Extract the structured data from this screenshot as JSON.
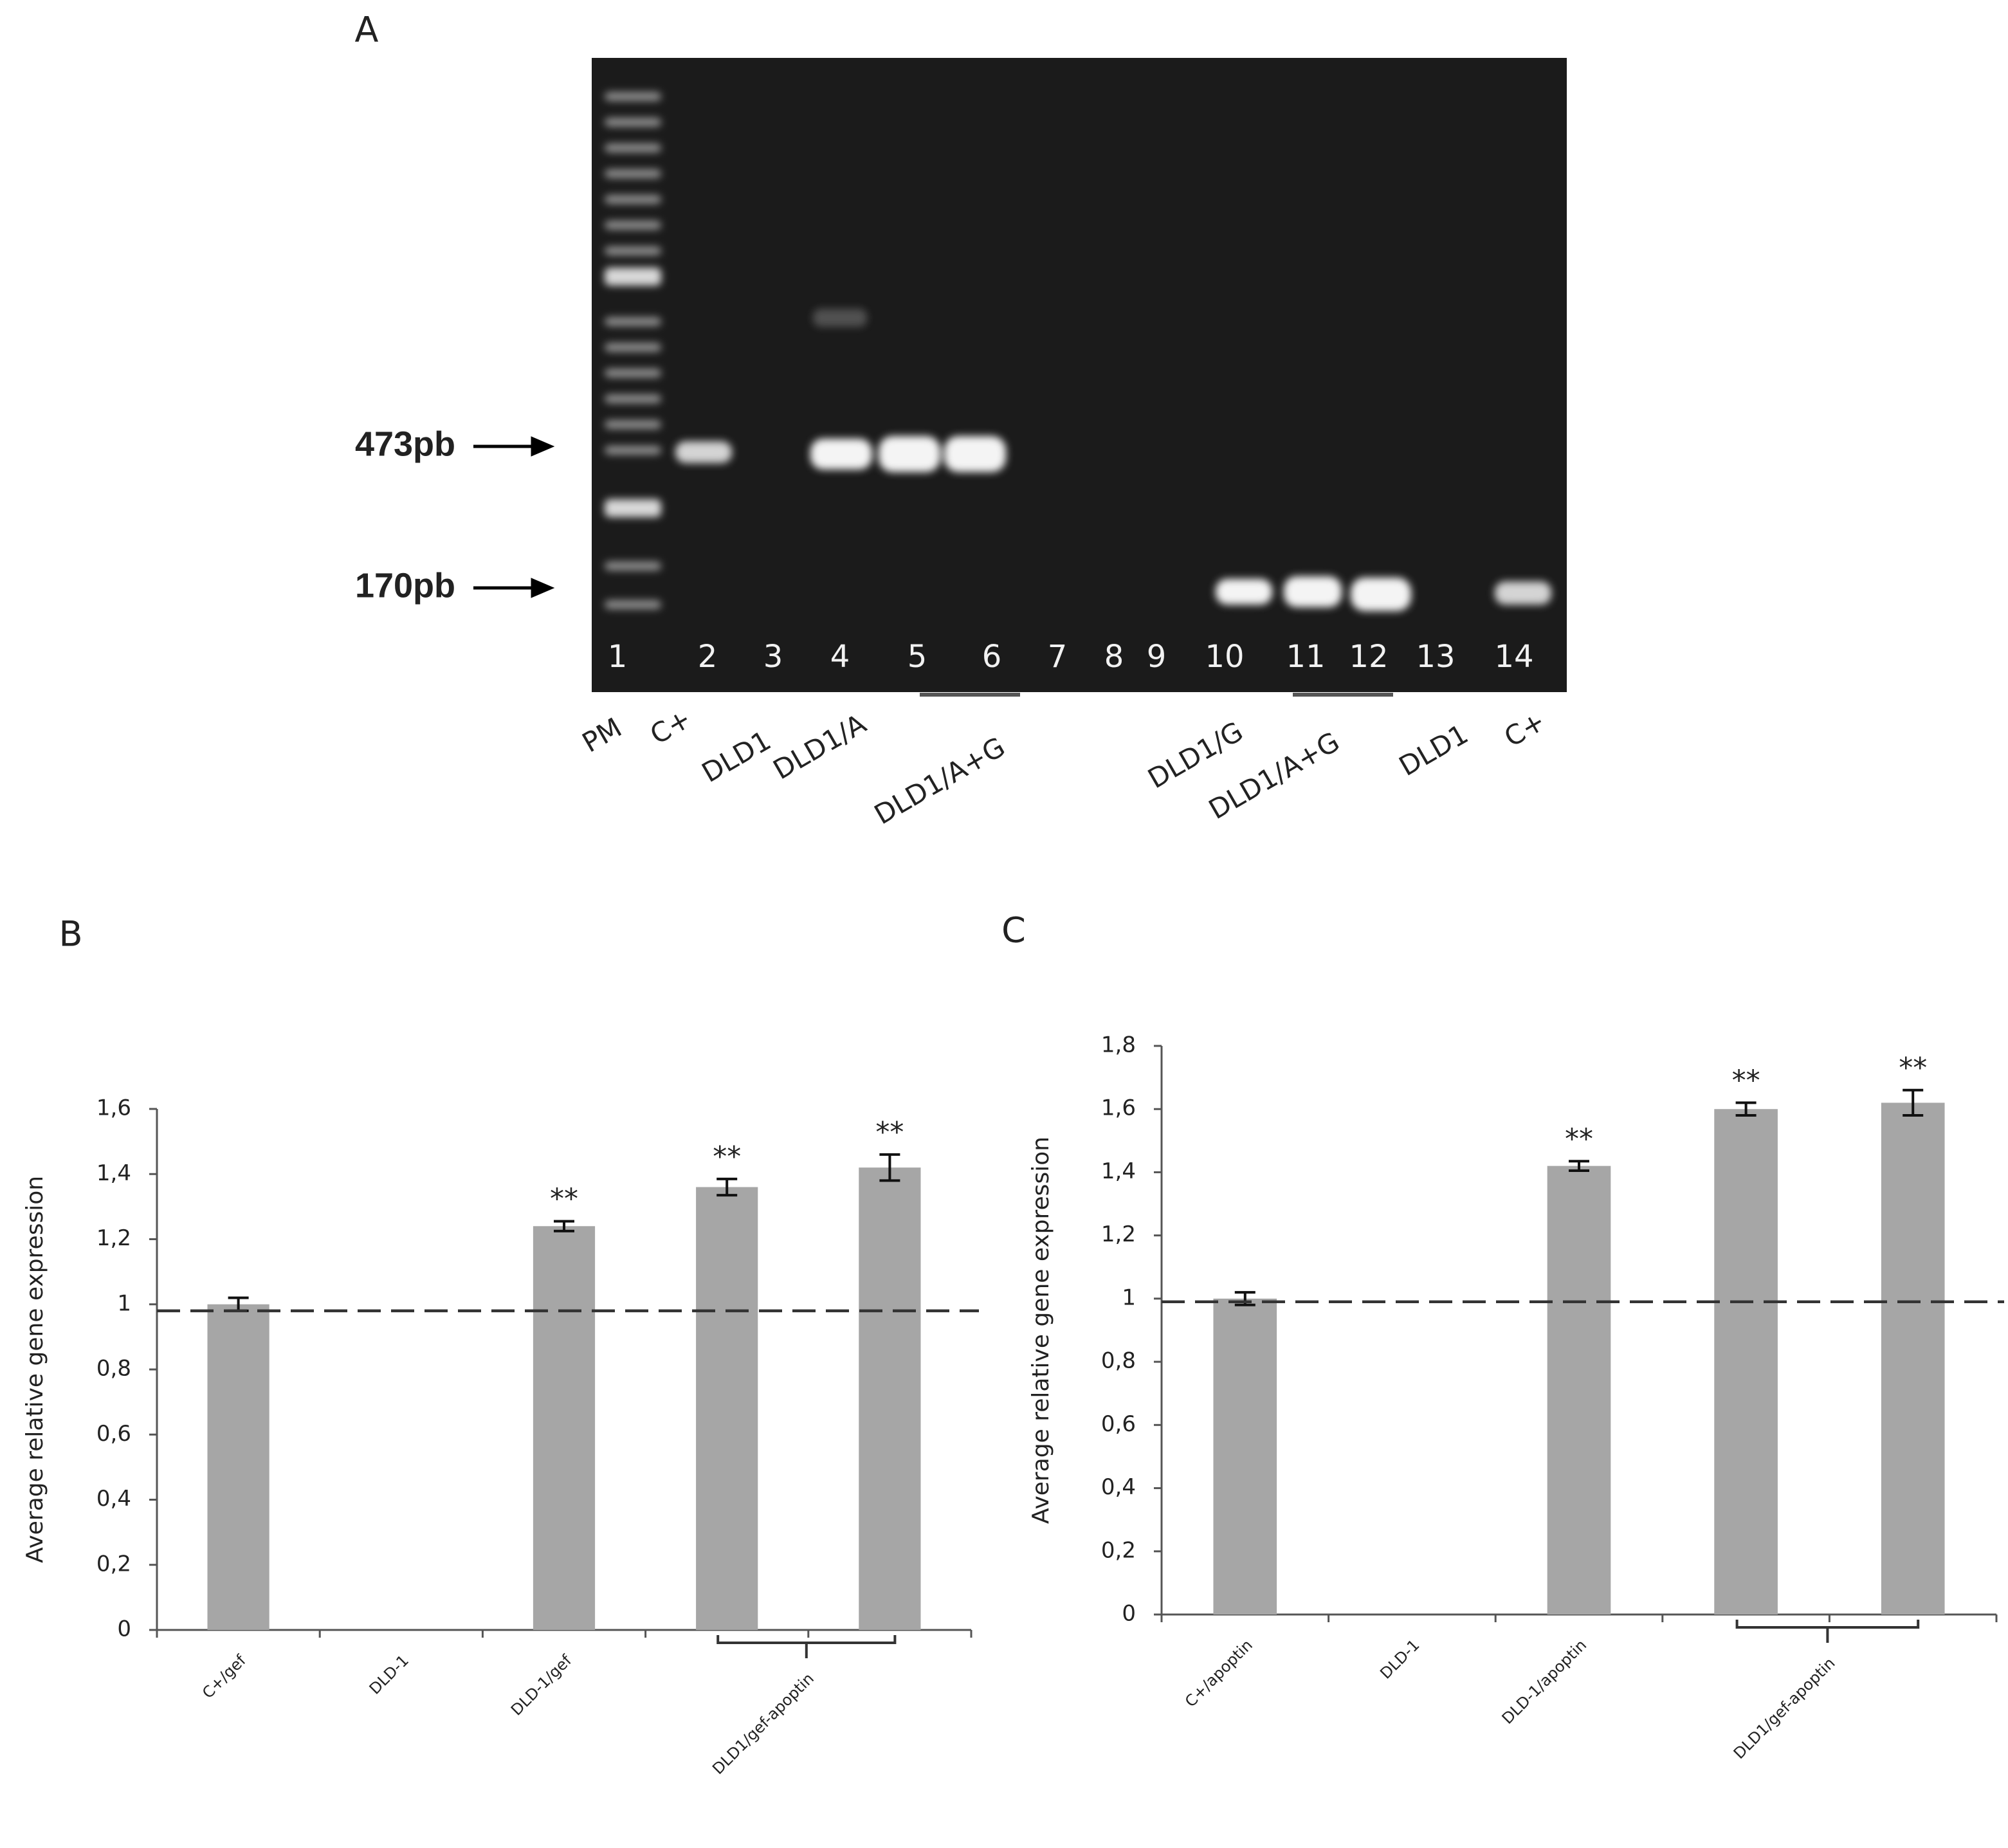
{
  "gel": {
    "panel": "A",
    "markers": [
      "473pb",
      "170pb"
    ],
    "lane_numbers": [
      "1",
      "2",
      "3",
      "4",
      "5",
      "6",
      "7",
      "8",
      "9",
      "10",
      "11",
      "12",
      "13",
      "14"
    ],
    "lane_labels": [
      "PM",
      "C+",
      "DLD1",
      "DLD1/A",
      "DLD1/A+G",
      "DLD1/G",
      "DLD1/A+G",
      "DLD1",
      "C+"
    ]
  },
  "chart_data": [
    {
      "type": "bar",
      "panel": "B",
      "y_axis_label": "Average relative gene expression",
      "categories": [
        "C+/gef",
        "DLD-1",
        "DLD-1/gef",
        null,
        null
      ],
      "group_label": "DLD1/gef-apoptin",
      "values": [
        1.0,
        0,
        1.24,
        1.36,
        1.42
      ],
      "errors": [
        0.02,
        null,
        0.015,
        0.025,
        0.04
      ],
      "value_annotations": [
        null,
        null,
        "**",
        "**",
        "**"
      ],
      "color": "#a6a6a6",
      "reference_line": 0.98,
      "ylim": [
        0,
        1.6
      ],
      "yticks": [
        0,
        {
          "value": 0.2,
          "label": "0,2"
        },
        {
          "value": 0.4,
          "label": "0,4"
        },
        {
          "value": 0.6,
          "label": "0,6"
        },
        {
          "value": 0.8,
          "label": "0,8"
        },
        1,
        {
          "value": 1.2,
          "label": "1,2"
        },
        {
          "value": 1.4,
          "label": "1,4"
        },
        {
          "value": 1.6,
          "label": "1,6"
        }
      ]
    },
    {
      "type": "bar",
      "panel": "C",
      "y_axis_label": "Average relative gene expression",
      "categories": [
        "C+/apoptin",
        "DLD-1",
        "DLD-1/apoptin",
        null,
        null
      ],
      "group_label": "DLD1/gef-apoptin",
      "values": [
        1.0,
        0,
        1.42,
        1.6,
        1.62
      ],
      "errors": [
        0.02,
        null,
        0.015,
        0.02,
        0.04
      ],
      "value_annotations": [
        null,
        null,
        "**",
        "**",
        "**"
      ],
      "color": "#a6a6a6",
      "reference_line": 0.99,
      "ylim": [
        0,
        1.8
      ],
      "yticks": [
        0,
        {
          "value": 0.2,
          "label": "0,2"
        },
        {
          "value": 0.4,
          "label": "0,4"
        },
        {
          "value": 0.6,
          "label": "0,6"
        },
        {
          "value": 0.8,
          "label": "0,8"
        },
        1,
        {
          "value": 1.2,
          "label": "1,2"
        },
        {
          "value": 1.4,
          "label": "1,4"
        },
        {
          "value": 1.6,
          "label": "1,6"
        },
        {
          "value": 1.8,
          "label": "1,8"
        }
      ]
    }
  ]
}
